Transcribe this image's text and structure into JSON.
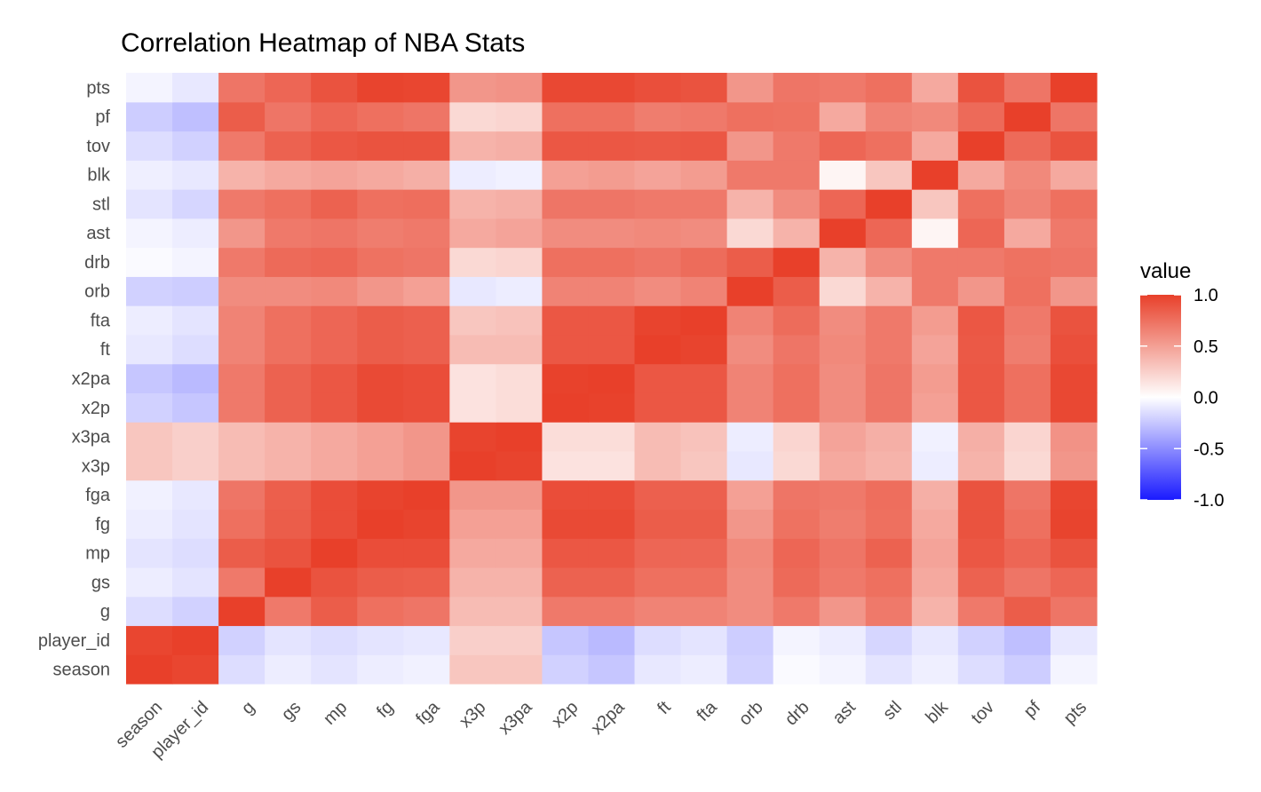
{
  "chart_data": {
    "type": "heatmap",
    "title": "Correlation Heatmap of NBA Stats",
    "x_categories": [
      "season",
      "player_id",
      "g",
      "gs",
      "mp",
      "fg",
      "fga",
      "x3p",
      "x3pa",
      "x2p",
      "x2pa",
      "ft",
      "fta",
      "orb",
      "drb",
      "ast",
      "stl",
      "blk",
      "tov",
      "pf",
      "pts"
    ],
    "y_categories": [
      "season",
      "player_id",
      "g",
      "gs",
      "mp",
      "fg",
      "fga",
      "x3p",
      "x3pa",
      "x2p",
      "x2pa",
      "ft",
      "fta",
      "orb",
      "drb",
      "ast",
      "stl",
      "blk",
      "tov",
      "pf",
      "pts"
    ],
    "values": [
      [
        1.0,
        0.97,
        -0.15,
        -0.08,
        -0.12,
        -0.08,
        -0.06,
        0.3,
        0.3,
        -0.2,
        -0.25,
        -0.1,
        -0.08,
        -0.2,
        -0.02,
        -0.05,
        -0.12,
        -0.07,
        -0.15,
        -0.22,
        -0.05
      ],
      [
        0.97,
        1.0,
        -0.2,
        -0.12,
        -0.15,
        -0.12,
        -0.1,
        0.25,
        0.25,
        -0.25,
        -0.3,
        -0.15,
        -0.12,
        -0.22,
        -0.05,
        -0.08,
        -0.18,
        -0.1,
        -0.2,
        -0.28,
        -0.1
      ],
      [
        -0.15,
        -0.2,
        1.0,
        0.7,
        0.85,
        0.75,
        0.72,
        0.35,
        0.35,
        0.7,
        0.7,
        0.65,
        0.65,
        0.6,
        0.7,
        0.55,
        0.7,
        0.4,
        0.7,
        0.85,
        0.72
      ],
      [
        -0.08,
        -0.12,
        0.7,
        1.0,
        0.9,
        0.85,
        0.84,
        0.4,
        0.4,
        0.82,
        0.82,
        0.75,
        0.75,
        0.6,
        0.78,
        0.7,
        0.75,
        0.45,
        0.82,
        0.72,
        0.8
      ],
      [
        -0.12,
        -0.15,
        0.85,
        0.9,
        1.0,
        0.93,
        0.93,
        0.45,
        0.45,
        0.88,
        0.88,
        0.8,
        0.8,
        0.62,
        0.8,
        0.72,
        0.82,
        0.48,
        0.88,
        0.8,
        0.9
      ],
      [
        -0.08,
        -0.12,
        0.75,
        0.85,
        0.93,
        1.0,
        0.98,
        0.5,
        0.5,
        0.95,
        0.95,
        0.85,
        0.85,
        0.55,
        0.74,
        0.68,
        0.75,
        0.45,
        0.9,
        0.75,
        0.98
      ],
      [
        -0.06,
        -0.1,
        0.72,
        0.84,
        0.93,
        0.98,
        1.0,
        0.55,
        0.55,
        0.93,
        0.93,
        0.83,
        0.83,
        0.5,
        0.72,
        0.7,
        0.76,
        0.42,
        0.9,
        0.72,
        0.97
      ],
      [
        0.3,
        0.25,
        0.35,
        0.4,
        0.45,
        0.5,
        0.55,
        1.0,
        0.98,
        0.15,
        0.15,
        0.35,
        0.3,
        -0.1,
        0.2,
        0.45,
        0.4,
        -0.08,
        0.4,
        0.2,
        0.55
      ],
      [
        0.3,
        0.25,
        0.35,
        0.4,
        0.45,
        0.5,
        0.55,
        0.98,
        1.0,
        0.18,
        0.18,
        0.35,
        0.32,
        -0.08,
        0.22,
        0.48,
        0.42,
        -0.06,
        0.42,
        0.22,
        0.57
      ],
      [
        -0.2,
        -0.25,
        0.7,
        0.82,
        0.88,
        0.95,
        0.93,
        0.15,
        0.18,
        1.0,
        0.99,
        0.88,
        0.88,
        0.65,
        0.75,
        0.6,
        0.72,
        0.5,
        0.88,
        0.75,
        0.96
      ],
      [
        -0.25,
        -0.3,
        0.7,
        0.82,
        0.88,
        0.95,
        0.93,
        0.15,
        0.18,
        0.99,
        1.0,
        0.88,
        0.88,
        0.65,
        0.75,
        0.6,
        0.72,
        0.52,
        0.88,
        0.75,
        0.96
      ],
      [
        -0.1,
        -0.15,
        0.65,
        0.75,
        0.8,
        0.85,
        0.83,
        0.35,
        0.35,
        0.88,
        0.88,
        1.0,
        0.98,
        0.6,
        0.72,
        0.62,
        0.7,
        0.48,
        0.87,
        0.68,
        0.92
      ],
      [
        -0.08,
        -0.12,
        0.65,
        0.75,
        0.8,
        0.85,
        0.83,
        0.3,
        0.32,
        0.88,
        0.88,
        0.98,
        1.0,
        0.65,
        0.77,
        0.6,
        0.7,
        0.52,
        0.88,
        0.7,
        0.9
      ],
      [
        -0.2,
        -0.22,
        0.6,
        0.6,
        0.62,
        0.55,
        0.5,
        -0.1,
        -0.08,
        0.65,
        0.65,
        0.6,
        0.65,
        1.0,
        0.85,
        0.2,
        0.4,
        0.7,
        0.55,
        0.75,
        0.55
      ],
      [
        -0.02,
        -0.05,
        0.7,
        0.78,
        0.8,
        0.74,
        0.72,
        0.2,
        0.22,
        0.75,
        0.75,
        0.72,
        0.77,
        0.85,
        1.0,
        0.4,
        0.6,
        0.7,
        0.7,
        0.74,
        0.72
      ],
      [
        -0.05,
        -0.08,
        0.55,
        0.7,
        0.72,
        0.68,
        0.7,
        0.45,
        0.48,
        0.6,
        0.6,
        0.62,
        0.6,
        0.2,
        0.4,
        1.0,
        0.8,
        0.05,
        0.8,
        0.45,
        0.7
      ],
      [
        -0.12,
        -0.18,
        0.7,
        0.75,
        0.82,
        0.75,
        0.76,
        0.4,
        0.42,
        0.72,
        0.72,
        0.7,
        0.7,
        0.4,
        0.6,
        0.8,
        1.0,
        0.3,
        0.75,
        0.65,
        0.75
      ],
      [
        -0.07,
        -0.1,
        0.4,
        0.45,
        0.48,
        0.45,
        0.42,
        -0.08,
        -0.06,
        0.5,
        0.52,
        0.48,
        0.52,
        0.7,
        0.7,
        0.05,
        0.3,
        1.0,
        0.45,
        0.62,
        0.45
      ],
      [
        -0.15,
        -0.2,
        0.7,
        0.82,
        0.88,
        0.9,
        0.9,
        0.4,
        0.42,
        0.88,
        0.88,
        0.87,
        0.88,
        0.55,
        0.7,
        0.8,
        0.75,
        0.45,
        1.0,
        0.78,
        0.9
      ],
      [
        -0.22,
        -0.28,
        0.85,
        0.72,
        0.8,
        0.75,
        0.72,
        0.2,
        0.22,
        0.75,
        0.75,
        0.68,
        0.7,
        0.75,
        0.74,
        0.45,
        0.65,
        0.62,
        0.78,
        1.0,
        0.72
      ],
      [
        -0.05,
        -0.1,
        0.72,
        0.8,
        0.9,
        0.98,
        0.97,
        0.55,
        0.57,
        0.96,
        0.96,
        0.92,
        0.9,
        0.55,
        0.72,
        0.7,
        0.75,
        0.45,
        0.9,
        0.72,
        1.0
      ]
    ],
    "color_scale": {
      "low": "#1a1aff",
      "mid": "#ffffff",
      "high": "#e8402a",
      "limits": [
        -1,
        1
      ]
    },
    "legend": {
      "title": "value",
      "ticks": [
        "1.0",
        "0.5",
        "0.0",
        "-0.5",
        "-1.0"
      ],
      "tick_values": [
        1.0,
        0.5,
        0.0,
        -0.5,
        -1.0
      ],
      "position": "right"
    },
    "grid": true
  }
}
